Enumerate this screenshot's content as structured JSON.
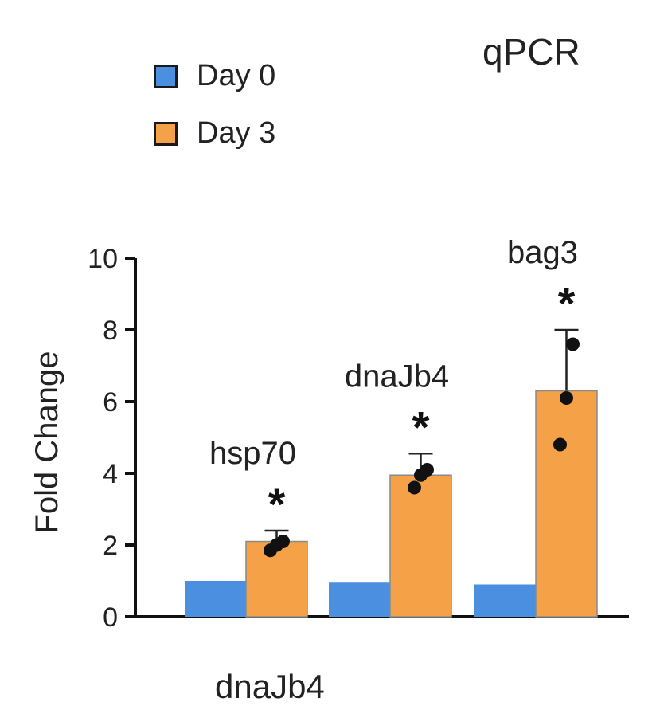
{
  "chart_data": {
    "type": "bar",
    "title": "qPCR",
    "ylabel": "Fold Change",
    "xlabel": "dnaJb4",
    "ylim": [
      0,
      10
    ],
    "yticks": [
      "0",
      "2",
      "4",
      "6",
      "8",
      "10"
    ],
    "categories": [
      "hsp70",
      "dnaJb4",
      "bag3"
    ],
    "series": [
      {
        "name": "Day 0",
        "color": "#4a8fe0",
        "values": [
          1.0,
          0.95,
          0.9
        ]
      },
      {
        "name": "Day 3",
        "color": "#f4a148",
        "values": [
          2.1,
          3.95,
          6.3
        ],
        "error": [
          0.3,
          0.6,
          1.7
        ]
      }
    ],
    "points": [
      [
        1.85,
        2.0,
        2.1
      ],
      [
        3.6,
        3.95,
        4.1
      ],
      [
        4.8,
        6.1,
        7.6
      ]
    ],
    "significance": [
      "*",
      "*",
      "*"
    ],
    "legend_position": "top-left"
  }
}
